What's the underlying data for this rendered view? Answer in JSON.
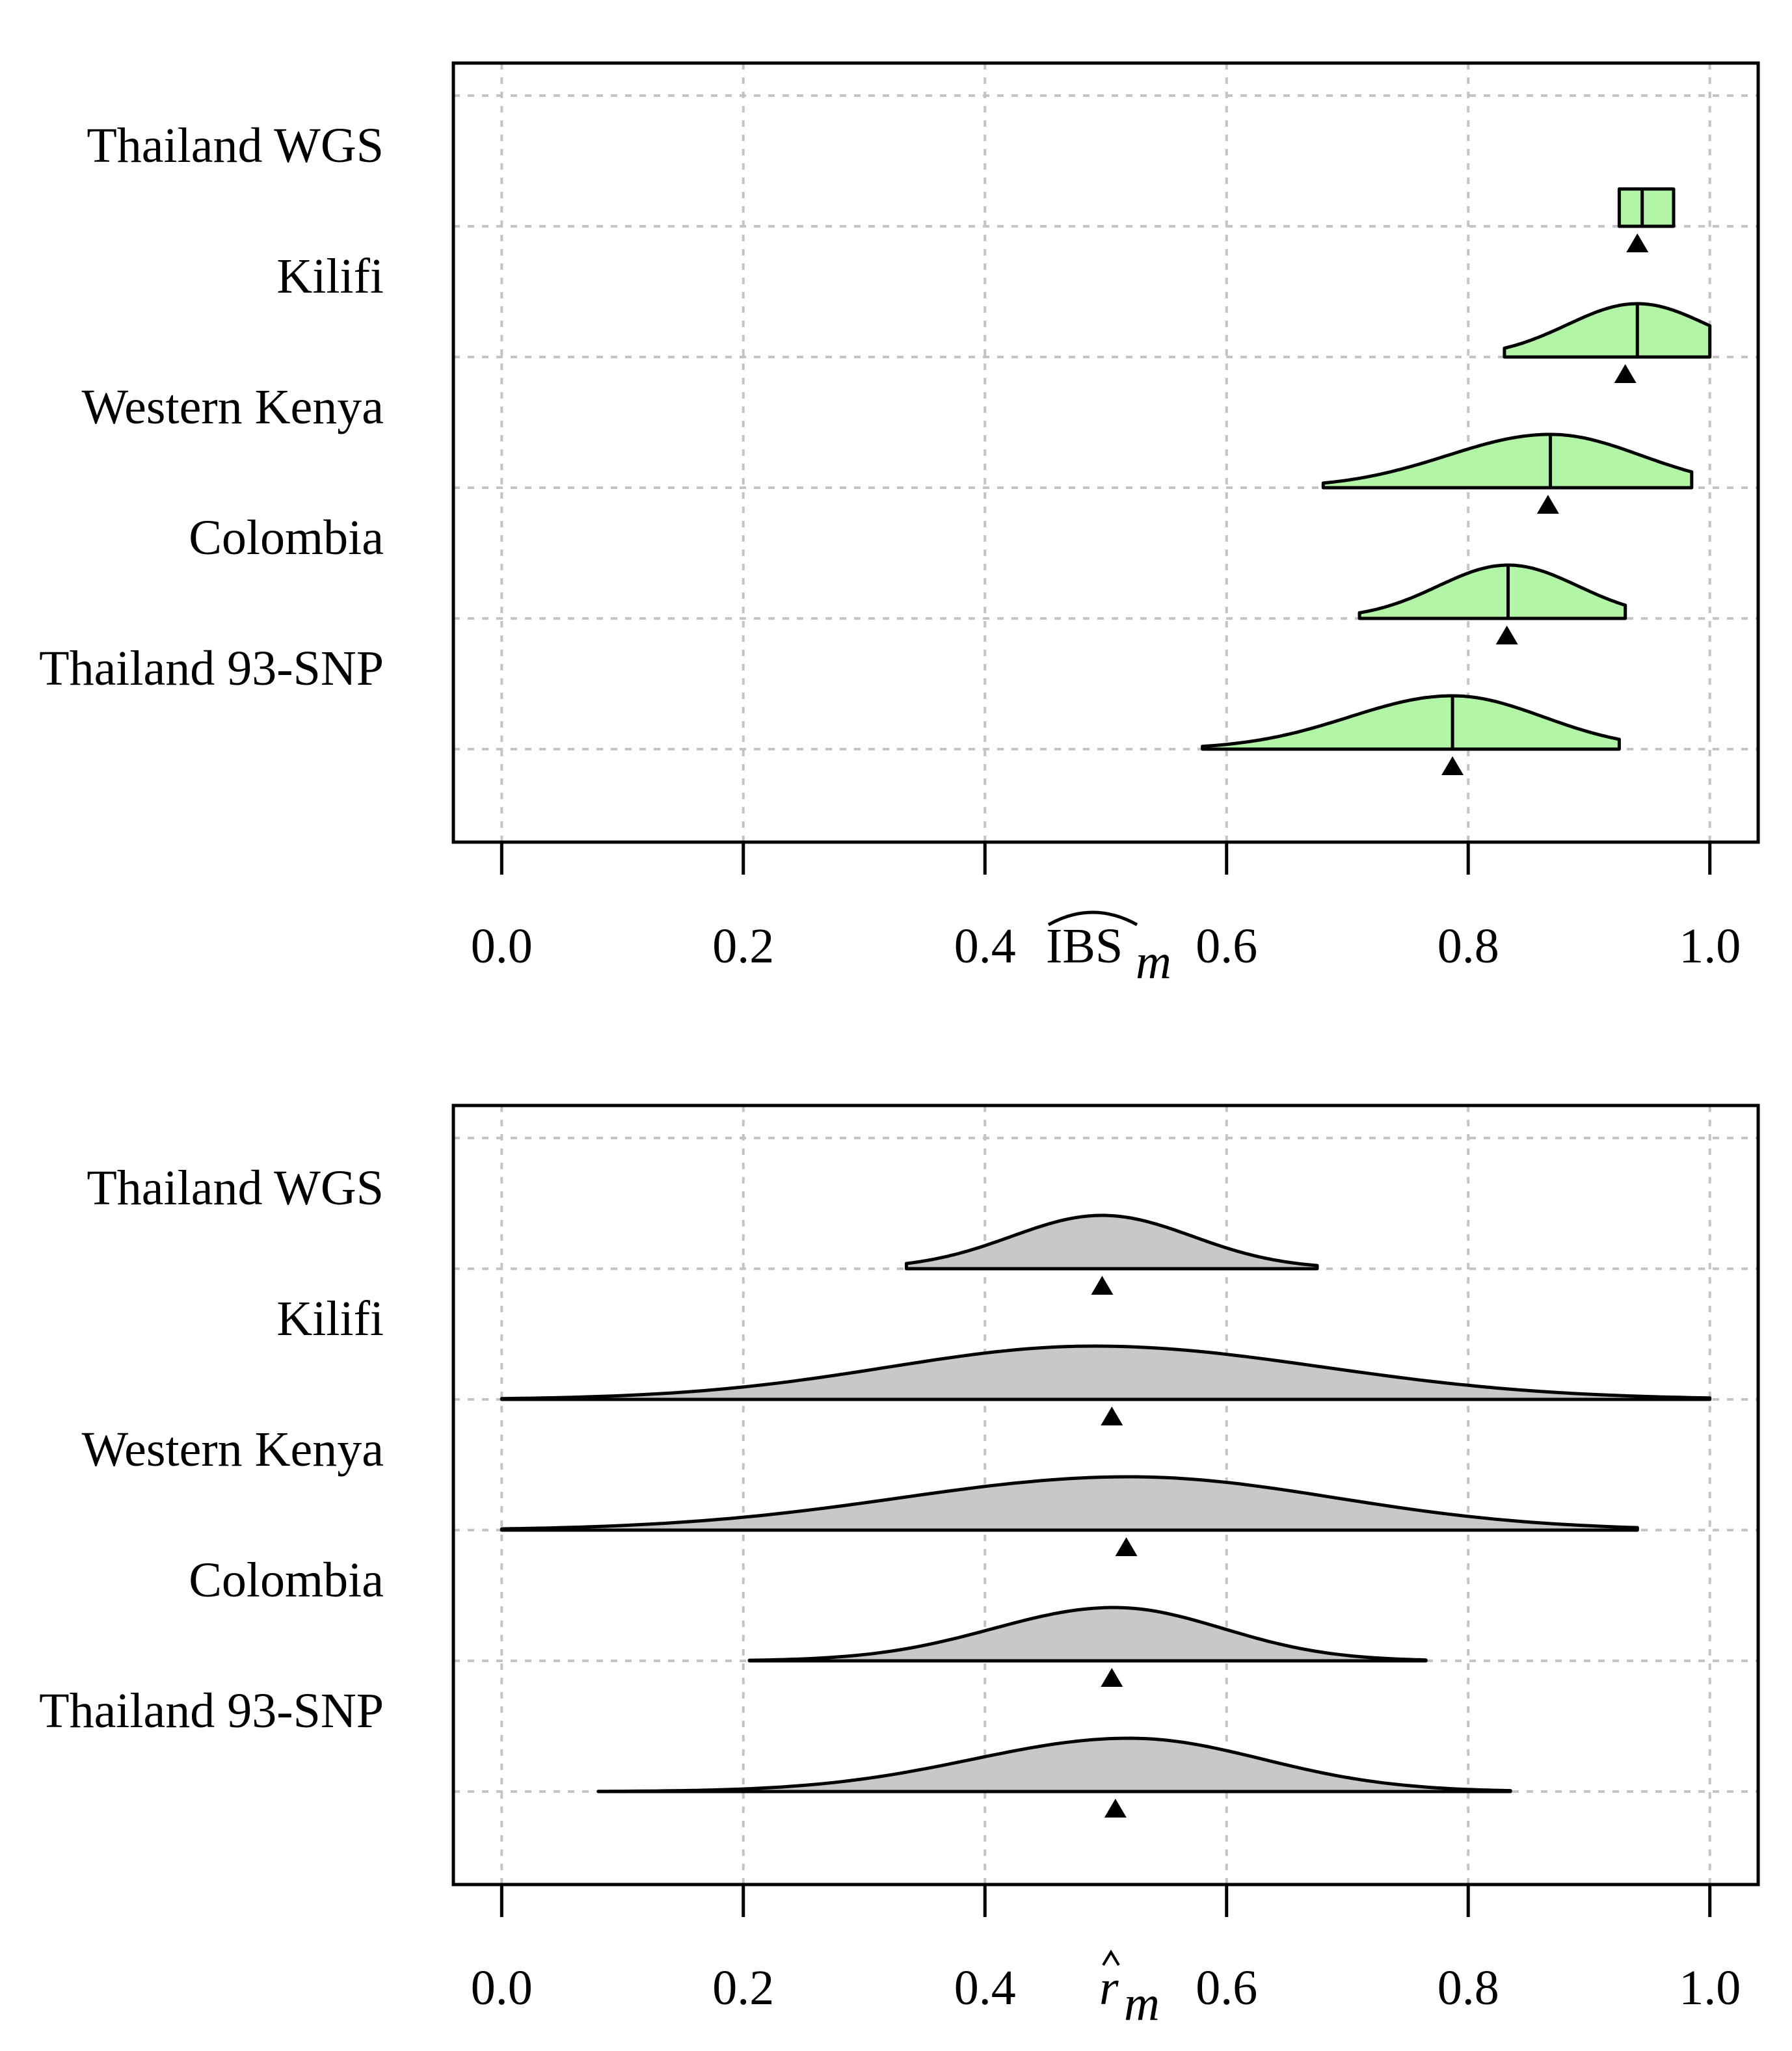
{
  "chart_data": [
    {
      "type": "violin",
      "title": "",
      "xlabel": "IBS",
      "xlabel_subscript": "m",
      "xlabel_accent": "wide-hat",
      "xlim": [
        -0.04,
        1.04
      ],
      "xticks": [
        0.0,
        0.2,
        0.4,
        0.6,
        0.8,
        1.0
      ],
      "xtick_labels": [
        "0.0",
        "0.2",
        "0.4",
        "0.6",
        "0.8",
        "1.0"
      ],
      "grid": true,
      "fill_color": "#b3f5a6",
      "median_line": true,
      "categories": [
        "Thailand WGS",
        "Kilifi",
        "Western Kenya",
        "Colombia",
        "Thailand 93-SNP"
      ],
      "series": [
        {
          "category": "Thailand WGS",
          "min": 0.925,
          "max": 0.97,
          "mode": 0.944,
          "median": 0.944,
          "mean": 0.94,
          "peak": 0.28,
          "sd_left": 0.6,
          "sd_right": 0.6
        },
        {
          "category": "Kilifi",
          "min": 0.83,
          "max": 1.0,
          "mode": 0.94,
          "median": 0.94,
          "mean": 0.93,
          "peak": 0.4,
          "sd_left": 0.058,
          "sd_right": 0.058
        },
        {
          "category": "Western Kenya",
          "min": 0.68,
          "max": 0.985,
          "mode": 0.868,
          "median": 0.868,
          "mean": 0.866,
          "peak": 0.4,
          "sd_left": 0.085,
          "sd_right": 0.075
        },
        {
          "category": "Colombia",
          "min": 0.71,
          "max": 0.93,
          "mode": 0.833,
          "median": 0.833,
          "mean": 0.832,
          "peak": 0.4,
          "sd_left": 0.058,
          "sd_right": 0.058
        },
        {
          "category": "Thailand 93-SNP",
          "min": 0.58,
          "max": 0.925,
          "mode": 0.787,
          "median": 0.787,
          "mean": 0.787,
          "peak": 0.4,
          "sd_left": 0.085,
          "sd_right": 0.075
        }
      ]
    },
    {
      "type": "violin",
      "title": "",
      "xlabel": "r",
      "xlabel_subscript": "m",
      "xlabel_accent": "hat",
      "xlim": [
        -0.04,
        1.04
      ],
      "xticks": [
        0.0,
        0.2,
        0.4,
        0.6,
        0.8,
        1.0
      ],
      "xtick_labels": [
        "0.0",
        "0.2",
        "0.4",
        "0.6",
        "0.8",
        "1.0"
      ],
      "grid": true,
      "fill_color": "#c8c8c8",
      "median_line": false,
      "categories": [
        "Thailand WGS",
        "Kilifi",
        "Western Kenya",
        "Colombia",
        "Thailand 93-SNP"
      ],
      "series": [
        {
          "category": "Thailand WGS",
          "min": 0.335,
          "max": 0.675,
          "mode": 0.497,
          "mean": 0.497,
          "peak": 0.4,
          "sd_left": 0.075,
          "sd_right": 0.075
        },
        {
          "category": "Kilifi",
          "min": 0.0,
          "max": 1.0,
          "mode": 0.49,
          "mean": 0.505,
          "peak": 0.4,
          "sd_left": 0.17,
          "sd_right": 0.19
        },
        {
          "category": "Western Kenya",
          "min": 0.0,
          "max": 0.94,
          "mode": 0.52,
          "mean": 0.517,
          "peak": 0.4,
          "sd_left": 0.19,
          "sd_right": 0.17
        },
        {
          "category": "Colombia",
          "min": 0.205,
          "max": 0.765,
          "mode": 0.507,
          "mean": 0.505,
          "peak": 0.4,
          "sd_left": 0.1,
          "sd_right": 0.09
        },
        {
          "category": "Thailand 93-SNP",
          "min": 0.08,
          "max": 0.835,
          "mode": 0.52,
          "mean": 0.508,
          "peak": 0.4,
          "sd_left": 0.13,
          "sd_right": 0.11
        }
      ]
    }
  ]
}
